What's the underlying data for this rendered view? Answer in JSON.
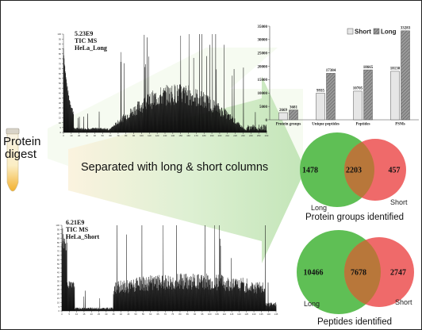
{
  "digest": {
    "label_line1": "Protein",
    "label_line2": "digest"
  },
  "arrow_text": "Separated with long & short columns",
  "tic_long": {
    "lines": [
      "5.23E9",
      "TIC MS",
      "HeLa_Long"
    ],
    "y_ticks": [
      "100",
      "95",
      "90",
      "85",
      "80",
      "75",
      "70",
      "65",
      "60",
      "55",
      "50",
      "45",
      "40",
      "35",
      "30",
      "25",
      "20",
      "15",
      "10",
      "5",
      "0"
    ],
    "x_ticks": [
      "0",
      "10",
      "20",
      "30",
      "40",
      "50",
      "60",
      "70",
      "80",
      "90",
      "100",
      "110",
      "120",
      "130",
      "140",
      "150",
      "160",
      "170",
      "180",
      "190",
      "200",
      "210",
      "220",
      "230",
      "240",
      "250",
      "260"
    ]
  },
  "tic_short": {
    "lines": [
      "6.21E9",
      "TIC MS",
      "HeLa_Short"
    ],
    "y_ticks": [
      "100",
      "95",
      "90",
      "85",
      "80",
      "75",
      "70",
      "65",
      "60",
      "55",
      "50",
      "45",
      "40",
      "35",
      "30",
      "25",
      "20",
      "15",
      "10",
      "5",
      "0"
    ],
    "x_ticks": [
      "0",
      "5",
      "10",
      "15",
      "20",
      "25",
      "30",
      "35",
      "40",
      "45",
      "50",
      "55",
      "60",
      "65",
      "70",
      "75",
      "80",
      "85",
      "90",
      "95",
      "100",
      "105",
      "110",
      "115",
      "120",
      "125",
      "130",
      "135",
      "140",
      "145"
    ]
  },
  "chart_data": {
    "type": "bar",
    "categories": [
      "Protein groups",
      "Unique peptides",
      "Peptides",
      "PSMs"
    ],
    "series": [
      {
        "name": "Short",
        "values": [
          2669,
          9935,
          10705,
          18130
        ]
      },
      {
        "name": "Long",
        "values": [
          3681,
          17384,
          18665,
          33283
        ]
      }
    ],
    "ylim": [
      0,
      35000
    ],
    "yticks": [
      0,
      5000,
      10000,
      15000,
      20000,
      25000,
      30000,
      35000
    ],
    "legend": "top-right",
    "colors": {
      "Short": "#e6e6e6",
      "Long": "#8f8f8f"
    }
  },
  "venn_proteins": {
    "long_only": "1478",
    "overlap": "2203",
    "short_only": "457",
    "long_label": "Long",
    "short_label": "Short",
    "caption": "Protein groups identified"
  },
  "venn_peptides": {
    "long_only": "10466",
    "overlap": "7678",
    "short_only": "2747",
    "long_label": "Long",
    "short_label": "Short",
    "caption": "Peptides identified"
  },
  "colors": {
    "long": "#5fbf55",
    "short": "#ef6a6a",
    "overlap": "#b8773a",
    "arrow": "#c9e7bf"
  }
}
